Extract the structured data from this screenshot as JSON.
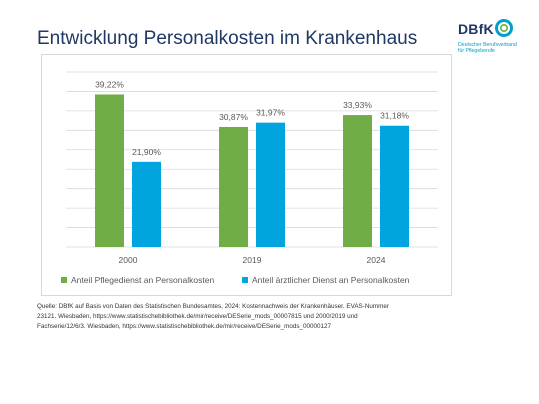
{
  "slide": {
    "title": "Entwicklung Personalkosten im Krankenhaus",
    "source_lines": [
      "Quelle: DBfK auf Basis von Daten des Statistischen Bundesamtes, 2024: Kostennachweis der Krankenhäuser. EVAS-Nummer",
      "23121. Wiesbaden, https://www.statistischebibliothek.de/mir/receive/DESerie_mods_00007815 und 2000/2019 und",
      "Fachserie/12/6/3. Wiesbaden, https://www.statistischebibliothek.de/mir/receive/DESerie_mods_00000127"
    ]
  },
  "logo": {
    "wordmark": "DBfK",
    "subtitle_line1": "Deutscher Berufsverband",
    "subtitle_line2": "für Pflegeberufe",
    "ring_color": "#00a1c8"
  },
  "chart_data": {
    "type": "bar",
    "categories": [
      "2000",
      "2019",
      "2024"
    ],
    "series": [
      {
        "name": "Anteil Pflegedienst an Personalkosten",
        "values": [
          39.22,
          30.87,
          33.93
        ],
        "labels": [
          "39,22%",
          "30,87%",
          "33,93%"
        ],
        "color": "#70ad47"
      },
      {
        "name": "Anteil ärztlicher Dienst an Personalkosten",
        "values": [
          21.9,
          31.97,
          31.18
        ],
        "labels": [
          "21,90%",
          "31,97%",
          "31,18%"
        ],
        "color": "#00a5e0"
      }
    ],
    "ylim": [
      0,
      45
    ],
    "grid": true,
    "gridlines": [
      0,
      5,
      10,
      15,
      20,
      25,
      30,
      35,
      40,
      45
    ],
    "legend_position": "bottom"
  }
}
